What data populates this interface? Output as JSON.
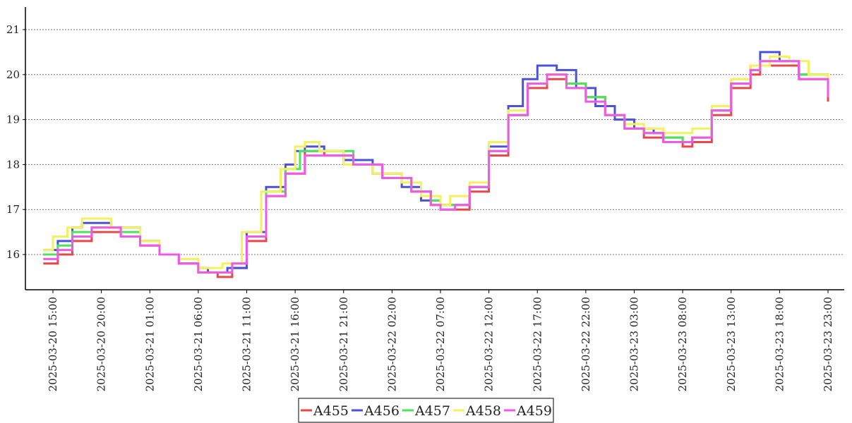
{
  "chart_data": {
    "type": "line",
    "step": true,
    "grid": "horizontal dotted",
    "legend_position": "bottom-center",
    "ylim": [
      15.2,
      21.5
    ],
    "yticks": [
      16,
      17,
      18,
      19,
      20,
      21
    ],
    "x_start": "2025-03-20 14:00",
    "x_end": "2025-03-23 23:00",
    "xticks": [
      "2025-03-20 15:00",
      "2025-03-20 20:00",
      "2025-03-21 01:00",
      "2025-03-21 06:00",
      "2025-03-21 11:00",
      "2025-03-21 16:00",
      "2025-03-21 21:00",
      "2025-03-22 02:00",
      "2025-03-22 07:00",
      "2025-03-22 12:00",
      "2025-03-22 17:00",
      "2025-03-22 22:00",
      "2025-03-23 03:00",
      "2025-03-23 08:00",
      "2025-03-23 13:00",
      "2025-03-23 18:00",
      "2025-03-23 23:00"
    ],
    "series": [
      {
        "name": "A455",
        "color": "#e8474a",
        "points": [
          [
            "2025-03-20 14:00",
            15.8
          ],
          [
            "2025-03-20 15:30",
            16.0
          ],
          [
            "2025-03-20 17:00",
            16.3
          ],
          [
            "2025-03-20 19:00",
            16.5
          ],
          [
            "2025-03-20 22:00",
            16.4
          ],
          [
            "2025-03-21 00:00",
            16.2
          ],
          [
            "2025-03-21 02:00",
            16.0
          ],
          [
            "2025-03-21 04:00",
            15.8
          ],
          [
            "2025-03-21 06:00",
            15.6
          ],
          [
            "2025-03-21 08:00",
            15.5
          ],
          [
            "2025-03-21 09:30",
            15.7
          ],
          [
            "2025-03-21 11:00",
            16.3
          ],
          [
            "2025-03-21 13:00",
            17.3
          ],
          [
            "2025-03-21 15:00",
            17.8
          ],
          [
            "2025-03-21 17:00",
            18.3
          ],
          [
            "2025-03-21 19:00",
            18.2
          ],
          [
            "2025-03-21 22:00",
            18.0
          ],
          [
            "2025-03-22 01:00",
            17.7
          ],
          [
            "2025-03-22 04:00",
            17.4
          ],
          [
            "2025-03-22 06:00",
            17.1
          ],
          [
            "2025-03-22 07:00",
            17.0
          ],
          [
            "2025-03-22 08:30",
            17.0
          ],
          [
            "2025-03-22 10:00",
            17.4
          ],
          [
            "2025-03-22 12:00",
            18.2
          ],
          [
            "2025-03-22 14:00",
            19.1
          ],
          [
            "2025-03-22 16:00",
            19.7
          ],
          [
            "2025-03-22 18:00",
            19.9
          ],
          [
            "2025-03-22 20:00",
            19.8
          ],
          [
            "2025-03-22 22:00",
            19.5
          ],
          [
            "2025-03-23 00:00",
            19.1
          ],
          [
            "2025-03-23 02:00",
            18.8
          ],
          [
            "2025-03-23 04:00",
            18.6
          ],
          [
            "2025-03-23 06:00",
            18.5
          ],
          [
            "2025-03-23 08:00",
            18.4
          ],
          [
            "2025-03-23 09:00",
            18.5
          ],
          [
            "2025-03-23 11:00",
            19.1
          ],
          [
            "2025-03-23 13:00",
            19.7
          ],
          [
            "2025-03-23 15:00",
            20.0
          ],
          [
            "2025-03-23 16:00",
            20.2
          ],
          [
            "2025-03-23 18:00",
            20.2
          ],
          [
            "2025-03-23 20:00",
            19.9
          ],
          [
            "2025-03-23 23:00",
            19.4
          ]
        ]
      },
      {
        "name": "A456",
        "color": "#4a52d9",
        "points": [
          [
            "2025-03-20 14:00",
            16.1
          ],
          [
            "2025-03-20 15:30",
            16.3
          ],
          [
            "2025-03-20 17:00",
            16.6
          ],
          [
            "2025-03-20 18:00",
            16.7
          ],
          [
            "2025-03-20 21:00",
            16.6
          ],
          [
            "2025-03-21 00:00",
            16.3
          ],
          [
            "2025-03-21 02:00",
            16.0
          ],
          [
            "2025-03-21 04:00",
            15.8
          ],
          [
            "2025-03-21 06:00",
            15.7
          ],
          [
            "2025-03-21 07:00",
            15.6
          ],
          [
            "2025-03-21 09:00",
            15.7
          ],
          [
            "2025-03-21 11:00",
            16.5
          ],
          [
            "2025-03-21 13:00",
            17.5
          ],
          [
            "2025-03-21 15:00",
            18.0
          ],
          [
            "2025-03-21 16:00",
            18.3
          ],
          [
            "2025-03-21 17:00",
            18.4
          ],
          [
            "2025-03-21 19:00",
            18.3
          ],
          [
            "2025-03-21 21:00",
            18.1
          ],
          [
            "2025-03-22 00:00",
            17.8
          ],
          [
            "2025-03-22 03:00",
            17.5
          ],
          [
            "2025-03-22 05:00",
            17.2
          ],
          [
            "2025-03-22 07:00",
            17.1
          ],
          [
            "2025-03-22 08:30",
            17.1
          ],
          [
            "2025-03-22 10:00",
            17.5
          ],
          [
            "2025-03-22 12:00",
            18.4
          ],
          [
            "2025-03-22 14:00",
            19.3
          ],
          [
            "2025-03-22 15:30",
            19.9
          ],
          [
            "2025-03-22 17:00",
            20.2
          ],
          [
            "2025-03-22 19:00",
            20.1
          ],
          [
            "2025-03-22 21:00",
            19.7
          ],
          [
            "2025-03-22 23:00",
            19.3
          ],
          [
            "2025-03-23 01:00",
            19.0
          ],
          [
            "2025-03-23 03:00",
            18.8
          ],
          [
            "2025-03-23 05:00",
            18.7
          ],
          [
            "2025-03-23 06:00",
            18.6
          ],
          [
            "2025-03-23 08:00",
            18.5
          ],
          [
            "2025-03-23 09:00",
            18.6
          ],
          [
            "2025-03-23 11:00",
            19.2
          ],
          [
            "2025-03-23 13:00",
            19.8
          ],
          [
            "2025-03-23 15:00",
            20.2
          ],
          [
            "2025-03-23 16:00",
            20.5
          ],
          [
            "2025-03-23 18:00",
            20.3
          ],
          [
            "2025-03-23 20:00",
            20.0
          ],
          [
            "2025-03-23 23:00",
            19.5
          ]
        ]
      },
      {
        "name": "A457",
        "color": "#4be35a",
        "points": [
          [
            "2025-03-20 14:00",
            16.0
          ],
          [
            "2025-03-20 15:30",
            16.2
          ],
          [
            "2025-03-20 17:00",
            16.5
          ],
          [
            "2025-03-20 19:00",
            16.6
          ],
          [
            "2025-03-20 22:00",
            16.5
          ],
          [
            "2025-03-21 00:00",
            16.3
          ],
          [
            "2025-03-21 02:00",
            16.0
          ],
          [
            "2025-03-21 04:00",
            15.8
          ],
          [
            "2025-03-21 06:00",
            15.6
          ],
          [
            "2025-03-21 07:30",
            15.6
          ],
          [
            "2025-03-21 09:30",
            15.8
          ],
          [
            "2025-03-21 11:00",
            16.4
          ],
          [
            "2025-03-21 13:00",
            17.4
          ],
          [
            "2025-03-21 15:00",
            17.9
          ],
          [
            "2025-03-21 16:30",
            18.3
          ],
          [
            "2025-03-21 19:00",
            18.3
          ],
          [
            "2025-03-21 22:00",
            18.0
          ],
          [
            "2025-03-22 01:00",
            17.7
          ],
          [
            "2025-03-22 04:00",
            17.4
          ],
          [
            "2025-03-22 06:00",
            17.2
          ],
          [
            "2025-03-22 07:00",
            17.1
          ],
          [
            "2025-03-22 08:30",
            17.1
          ],
          [
            "2025-03-22 10:00",
            17.5
          ],
          [
            "2025-03-22 12:00",
            18.3
          ],
          [
            "2025-03-22 14:00",
            19.1
          ],
          [
            "2025-03-22 16:00",
            19.8
          ],
          [
            "2025-03-22 18:00",
            20.0
          ],
          [
            "2025-03-22 20:00",
            19.8
          ],
          [
            "2025-03-22 22:00",
            19.5
          ],
          [
            "2025-03-23 00:00",
            19.1
          ],
          [
            "2025-03-23 02:00",
            18.8
          ],
          [
            "2025-03-23 04:00",
            18.7
          ],
          [
            "2025-03-23 06:00",
            18.6
          ],
          [
            "2025-03-23 08:00",
            18.5
          ],
          [
            "2025-03-23 09:00",
            18.6
          ],
          [
            "2025-03-23 11:00",
            19.2
          ],
          [
            "2025-03-23 13:00",
            19.8
          ],
          [
            "2025-03-23 15:00",
            20.1
          ],
          [
            "2025-03-23 16:00",
            20.3
          ],
          [
            "2025-03-23 18:00",
            20.3
          ],
          [
            "2025-03-23 20:00",
            20.0
          ],
          [
            "2025-03-23 23:00",
            19.5
          ]
        ]
      },
      {
        "name": "A458",
        "color": "#f4f25a",
        "points": [
          [
            "2025-03-20 14:00",
            16.1
          ],
          [
            "2025-03-20 15:00",
            16.4
          ],
          [
            "2025-03-20 16:30",
            16.6
          ],
          [
            "2025-03-20 18:00",
            16.8
          ],
          [
            "2025-03-20 21:00",
            16.6
          ],
          [
            "2025-03-21 00:00",
            16.3
          ],
          [
            "2025-03-21 02:00",
            16.0
          ],
          [
            "2025-03-21 04:00",
            15.9
          ],
          [
            "2025-03-21 06:00",
            15.7
          ],
          [
            "2025-03-21 08:30",
            15.8
          ],
          [
            "2025-03-21 10:30",
            16.5
          ],
          [
            "2025-03-21 12:30",
            17.4
          ],
          [
            "2025-03-21 14:30",
            17.9
          ],
          [
            "2025-03-21 16:00",
            18.4
          ],
          [
            "2025-03-21 17:00",
            18.5
          ],
          [
            "2025-03-21 18:30",
            18.3
          ],
          [
            "2025-03-21 21:00",
            18.0
          ],
          [
            "2025-03-22 00:00",
            17.8
          ],
          [
            "2025-03-22 03:00",
            17.6
          ],
          [
            "2025-03-22 05:00",
            17.3
          ],
          [
            "2025-03-22 07:00",
            17.1
          ],
          [
            "2025-03-22 08:00",
            17.3
          ],
          [
            "2025-03-22 10:00",
            17.6
          ],
          [
            "2025-03-22 12:00",
            18.5
          ],
          [
            "2025-03-22 14:00",
            19.2
          ],
          [
            "2025-03-22 16:00",
            19.8
          ],
          [
            "2025-03-22 18:00",
            20.0
          ],
          [
            "2025-03-22 20:00",
            19.7
          ],
          [
            "2025-03-22 22:00",
            19.4
          ],
          [
            "2025-03-23 00:00",
            19.1
          ],
          [
            "2025-03-23 02:00",
            18.9
          ],
          [
            "2025-03-23 04:00",
            18.8
          ],
          [
            "2025-03-23 06:00",
            18.7
          ],
          [
            "2025-03-23 08:00",
            18.7
          ],
          [
            "2025-03-23 09:00",
            18.8
          ],
          [
            "2025-03-23 11:00",
            19.3
          ],
          [
            "2025-03-23 13:00",
            19.9
          ],
          [
            "2025-03-23 15:00",
            20.2
          ],
          [
            "2025-03-23 17:00",
            20.4
          ],
          [
            "2025-03-23 19:00",
            20.3
          ],
          [
            "2025-03-23 21:00",
            20.0
          ],
          [
            "2025-03-23 23:00",
            19.6
          ]
        ]
      },
      {
        "name": "A459",
        "color": "#f058e8",
        "points": [
          [
            "2025-03-20 14:00",
            15.9
          ],
          [
            "2025-03-20 15:30",
            16.1
          ],
          [
            "2025-03-20 17:00",
            16.4
          ],
          [
            "2025-03-20 19:00",
            16.6
          ],
          [
            "2025-03-20 22:00",
            16.4
          ],
          [
            "2025-03-21 00:00",
            16.2
          ],
          [
            "2025-03-21 02:00",
            16.0
          ],
          [
            "2025-03-21 04:00",
            15.8
          ],
          [
            "2025-03-21 06:00",
            15.6
          ],
          [
            "2025-03-21 08:00",
            15.6
          ],
          [
            "2025-03-21 09:30",
            15.8
          ],
          [
            "2025-03-21 11:00",
            16.4
          ],
          [
            "2025-03-21 13:00",
            17.3
          ],
          [
            "2025-03-21 15:00",
            17.8
          ],
          [
            "2025-03-21 17:00",
            18.2
          ],
          [
            "2025-03-21 19:00",
            18.2
          ],
          [
            "2025-03-21 22:00",
            18.0
          ],
          [
            "2025-03-22 01:00",
            17.7
          ],
          [
            "2025-03-22 04:00",
            17.4
          ],
          [
            "2025-03-22 06:00",
            17.1
          ],
          [
            "2025-03-22 07:00",
            17.0
          ],
          [
            "2025-03-22 08:30",
            17.1
          ],
          [
            "2025-03-22 10:00",
            17.5
          ],
          [
            "2025-03-22 12:00",
            18.3
          ],
          [
            "2025-03-22 14:00",
            19.1
          ],
          [
            "2025-03-22 16:00",
            19.8
          ],
          [
            "2025-03-22 18:00",
            20.0
          ],
          [
            "2025-03-22 20:00",
            19.7
          ],
          [
            "2025-03-22 22:00",
            19.4
          ],
          [
            "2025-03-23 00:00",
            19.1
          ],
          [
            "2025-03-23 02:00",
            18.8
          ],
          [
            "2025-03-23 04:00",
            18.7
          ],
          [
            "2025-03-23 06:00",
            18.5
          ],
          [
            "2025-03-23 08:00",
            18.5
          ],
          [
            "2025-03-23 09:00",
            18.6
          ],
          [
            "2025-03-23 11:00",
            19.2
          ],
          [
            "2025-03-23 13:00",
            19.8
          ],
          [
            "2025-03-23 15:00",
            20.1
          ],
          [
            "2025-03-23 16:00",
            20.3
          ],
          [
            "2025-03-23 18:00",
            20.3
          ],
          [
            "2025-03-23 20:00",
            19.9
          ],
          [
            "2025-03-23 23:00",
            19.5
          ]
        ]
      }
    ]
  }
}
